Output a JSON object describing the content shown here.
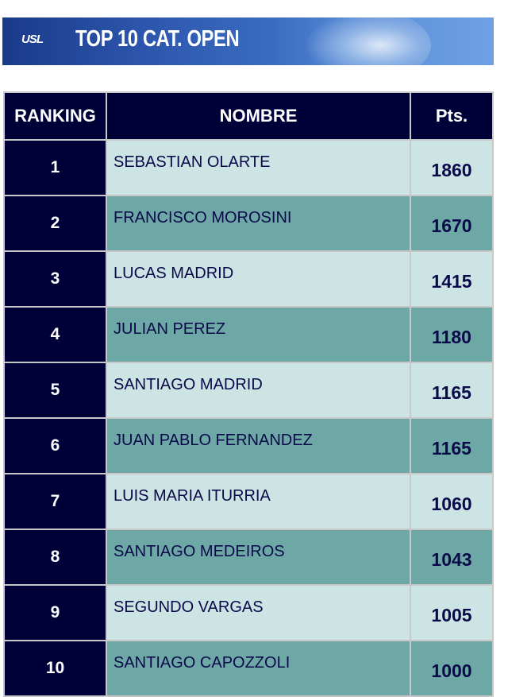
{
  "banner": {
    "logo_text": "USL",
    "title": "TOP 10 CAT. OPEN"
  },
  "table": {
    "headers": [
      "RANKING",
      "NOMBRE",
      "Pts."
    ],
    "rows": [
      {
        "rank": "1",
        "name": "SEBASTIAN OLARTE",
        "pts": "1860"
      },
      {
        "rank": "2",
        "name": "FRANCISCO MOROSINI",
        "pts": "1670"
      },
      {
        "rank": "3",
        "name": "LUCAS MADRID",
        "pts": "1415"
      },
      {
        "rank": "4",
        "name": "JULIAN PEREZ",
        "pts": "1180"
      },
      {
        "rank": "5",
        "name": "SANTIAGO MADRID",
        "pts": "1165"
      },
      {
        "rank": "6",
        "name": "JUAN PABLO FERNANDEZ",
        "pts": "1165"
      },
      {
        "rank": "7",
        "name": "LUIS MARIA ITURRIA",
        "pts": "1060"
      },
      {
        "rank": "8",
        "name": "SANTIAGO MEDEIROS",
        "pts": "1043"
      },
      {
        "rank": "9",
        "name": "SEGUNDO VARGAS",
        "pts": "1005"
      },
      {
        "rank": "10",
        "name": "SANTIAGO CAPOZZOLI",
        "pts": "1000"
      }
    ]
  },
  "colors": {
    "header_bg": "#000038",
    "row_light": "#cde4e4",
    "row_dark": "#6ea8a6",
    "text": "#0a0a4a"
  }
}
